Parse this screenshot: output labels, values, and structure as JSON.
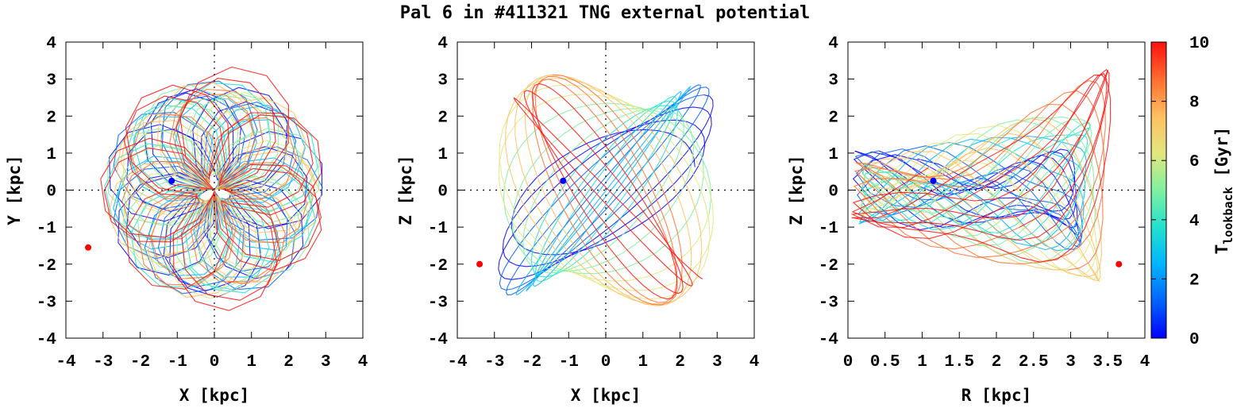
{
  "title": "Pal 6 in #411321 TNG external potential",
  "colors": {
    "start_marker": "#0000ff",
    "end_marker": "#ff0000",
    "axis": "#000000",
    "background": "#ffffff",
    "colormap": [
      "#0000ff",
      "#0060ff",
      "#00b4ff",
      "#20e0d0",
      "#80f0a0",
      "#e0e880",
      "#ffc060",
      "#ff7030",
      "#ff1010"
    ]
  },
  "chart_data": [
    {
      "type": "line",
      "panel": "X-Y projection",
      "xlabel": "X [kpc]",
      "ylabel": "Y [kpc]",
      "xlim": [
        -4,
        4
      ],
      "ylim": [
        -4,
        4
      ],
      "xticks": [
        "-4",
        "-3",
        "-2",
        "-1",
        "0",
        "1",
        "2",
        "3",
        "4"
      ],
      "yticks": [
        "-4",
        "-3",
        "-2",
        "-1",
        "0",
        "1",
        "2",
        "3",
        "4"
      ],
      "zero_axes": true,
      "orbit_shape": "rosette",
      "orbit_outer_radius_kpc": 3.0,
      "orbit_extreme_kpc": 3.8,
      "present_position": {
        "x": -1.15,
        "y": 0.25
      },
      "earliest_position": {
        "x": -3.4,
        "y": -1.55
      }
    },
    {
      "type": "line",
      "panel": "X-Z projection",
      "xlabel": "X [kpc]",
      "ylabel": "Z [kpc]",
      "xlim": [
        -4,
        4
      ],
      "ylim": [
        -4,
        4
      ],
      "xticks": [
        "-4",
        "-3",
        "-2",
        "-1",
        "0",
        "1",
        "2",
        "3",
        "4"
      ],
      "yticks": [
        "-4",
        "-3",
        "-2",
        "-1",
        "0",
        "1",
        "2",
        "3",
        "4"
      ],
      "zero_axes": true,
      "orbit_shape": "tilted loops",
      "orbit_extent_x_kpc": 3.0,
      "orbit_extent_z_kpc": 3.6,
      "present_position": {
        "x": -1.15,
        "z": 0.25
      },
      "earliest_position": {
        "x": -3.4,
        "z": -2.0
      }
    },
    {
      "type": "line",
      "panel": "R-Z meridional plane",
      "xlabel": "R [kpc]",
      "ylabel": "Z [kpc]",
      "xlim": [
        0,
        4
      ],
      "ylim": [
        -4,
        4
      ],
      "xticks": [
        "0",
        "0.5",
        "1",
        "1.5",
        "2",
        "2.5",
        "3",
        "3.5",
        "4"
      ],
      "yticks": [
        "-4",
        "-3",
        "-2",
        "-1",
        "0",
        "1",
        "2",
        "3",
        "4"
      ],
      "zero_axes": true,
      "orbit_shape": "wedge",
      "orbit_extent_r_kpc": 3.5,
      "present_position": {
        "r": 1.15,
        "z": 0.25
      },
      "earliest_position": {
        "r": 3.65,
        "z": -2.0
      }
    }
  ],
  "colorbar": {
    "label_main": "T",
    "label_sub": "lookback",
    "label_unit": "[Gyr]",
    "range": [
      0,
      10
    ],
    "ticks": [
      "0",
      "2",
      "4",
      "6",
      "8",
      "10"
    ]
  }
}
